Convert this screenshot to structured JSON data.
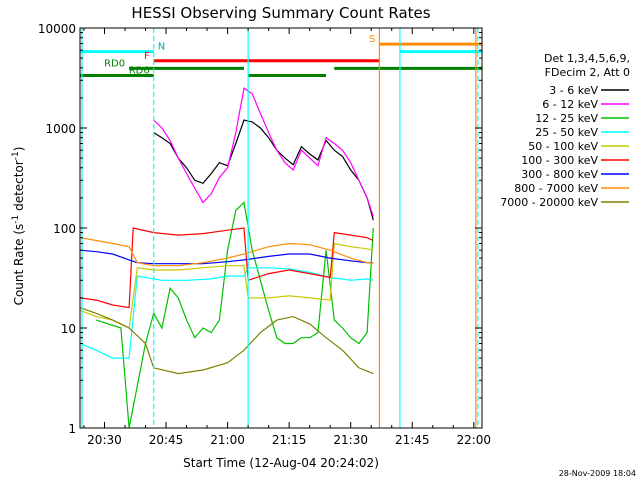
{
  "chart_data": {
    "type": "line",
    "title": "HESSI Observing Summary Count Rates",
    "xlabel": "Start Time (12-Aug-04 20:24:02)",
    "ylabel": "Count Rate (s⁻¹ detector⁻¹)",
    "ylabel_main": "Count Rate (s",
    "ylabel_sup1": "-1",
    "ylabel_mid": " detector",
    "ylabel_sup2": "-1",
    "ylabel_end": ")",
    "y_scale": "log",
    "ylim": [
      1,
      10000
    ],
    "xlim": [
      "20:24:02",
      "22:02:00"
    ],
    "x_ticks": [
      "20:30",
      "20:45",
      "21:00",
      "21:15",
      "21:30",
      "21:45",
      "22:00"
    ],
    "y_ticks": [
      "1",
      "10",
      "100",
      "1000",
      "10000"
    ],
    "legend_header": [
      "Det 1,3,4,5,6,9,",
      "FDecim 2, Att 0"
    ],
    "legend_position": "right",
    "footer_date": "28-Nov-2009 18:04",
    "series": [
      {
        "name": "3 - 6 keV",
        "color": "#000000",
        "x": [
          "20:42:00",
          "20:44:00",
          "20:46:00",
          "20:48:00",
          "20:50:00",
          "20:52:00",
          "20:54:00",
          "20:56:00",
          "20:58:00",
          "21:00:00",
          "21:02:00",
          "21:04:00",
          "21:06:00",
          "21:08:00",
          "21:10:00",
          "21:12:00",
          "21:14:00",
          "21:16:00",
          "21:18:00",
          "21:20:00",
          "21:22:00",
          "21:24:00",
          "21:26:00",
          "21:28:00",
          "21:30:00",
          "21:32:00",
          "21:34:00",
          "21:35:30"
        ],
        "values": [
          900,
          800,
          700,
          500,
          400,
          300,
          280,
          350,
          450,
          420,
          700,
          1200,
          1150,
          1000,
          800,
          600,
          500,
          430,
          650,
          550,
          480,
          750,
          600,
          520,
          380,
          300,
          200,
          120
        ]
      },
      {
        "name": "6 - 12 keV",
        "color": "#ff00ff",
        "x": [
          "20:42:00",
          "20:44:00",
          "20:46:00",
          "20:48:00",
          "20:50:00",
          "20:52:00",
          "20:54:00",
          "20:56:00",
          "20:58:00",
          "21:00:00",
          "21:02:00",
          "21:04:00",
          "21:06:00",
          "21:08:00",
          "21:10:00",
          "21:12:00",
          "21:14:00",
          "21:16:00",
          "21:18:00",
          "21:20:00",
          "21:22:00",
          "21:24:00",
          "21:26:00",
          "21:28:00",
          "21:30:00",
          "21:32:00",
          "21:34:00",
          "21:35:30"
        ],
        "values": [
          1200,
          1000,
          750,
          500,
          350,
          250,
          180,
          220,
          320,
          400,
          900,
          2500,
          2200,
          1400,
          900,
          600,
          450,
          380,
          600,
          500,
          420,
          800,
          700,
          600,
          450,
          300,
          200,
          130
        ]
      },
      {
        "name": "12 - 25 keV",
        "color": "#00c000",
        "x": [
          "20:28:00",
          "20:34:00",
          "20:36:00",
          "20:40:00",
          "20:42:00",
          "20:44:00",
          "20:46:00",
          "20:48:00",
          "20:50:00",
          "20:52:00",
          "20:54:00",
          "20:56:00",
          "20:58:00",
          "21:00:00",
          "21:02:00",
          "21:04:00",
          "21:06:00",
          "21:08:00",
          "21:10:00",
          "21:12:00",
          "21:14:00",
          "21:16:00",
          "21:18:00",
          "21:20:00",
          "21:22:00",
          "21:24:00",
          "21:26:00",
          "21:28:00",
          "21:30:00",
          "21:32:00",
          "21:34:00",
          "21:35:30"
        ],
        "values": [
          12,
          10,
          1,
          7,
          14,
          10,
          25,
          20,
          12,
          8,
          10,
          9,
          12,
          60,
          150,
          180,
          60,
          30,
          15,
          8,
          7,
          7,
          8,
          8,
          9,
          60,
          12,
          10,
          8,
          7,
          9,
          100
        ]
      },
      {
        "name": "25 - 50 keV",
        "color": "#00ffff",
        "x": [
          "20:24:02",
          "20:28:00",
          "20:32:00",
          "20:36:00",
          "20:38:00",
          "20:40:00",
          "20:44:00",
          "20:50:00",
          "20:56:00",
          "21:00:00",
          "21:04:00",
          "21:05:00",
          "21:10:00",
          "21:15:00",
          "21:20:00",
          "21:25:00",
          "21:30:00",
          "21:34:00",
          "21:35:30"
        ],
        "values": [
          7,
          6,
          5,
          5,
          33,
          32,
          30,
          30,
          31,
          33,
          33,
          40,
          40,
          39,
          36,
          32,
          30,
          31,
          30
        ]
      },
      {
        "name": "50 - 100 keV",
        "color": "#c8c800",
        "x": [
          "20:24:02",
          "20:28:00",
          "20:32:00",
          "20:36:00",
          "20:38:00",
          "20:42:00",
          "20:48:00",
          "20:54:00",
          "21:00:00",
          "21:04:00",
          "21:05:00",
          "21:10:00",
          "21:15:00",
          "21:20:00",
          "21:25:00",
          "21:26:00",
          "21:30:00",
          "21:34:00",
          "21:35:30"
        ],
        "values": [
          15,
          13,
          12,
          10,
          40,
          38,
          38,
          40,
          42,
          42,
          20,
          20,
          21,
          20,
          19,
          70,
          65,
          62,
          60
        ]
      },
      {
        "name": "100 - 300 keV",
        "color": "#ff0000",
        "x": [
          "20:24:02",
          "20:28:00",
          "20:32:00",
          "20:36:00",
          "20:37:00",
          "20:42:00",
          "20:48:00",
          "20:54:00",
          "21:00:00",
          "21:04:00",
          "21:05:00",
          "21:10:00",
          "21:15:00",
          "21:20:00",
          "21:25:00",
          "21:26:00",
          "21:30:00",
          "21:34:00",
          "21:35:30"
        ],
        "values": [
          20,
          19,
          17,
          16,
          100,
          90,
          85,
          88,
          95,
          100,
          30,
          35,
          38,
          35,
          32,
          90,
          85,
          80,
          75
        ]
      },
      {
        "name": "300 - 800 keV",
        "color": "#0000ff",
        "x": [
          "20:24:02",
          "20:28:00",
          "20:32:00",
          "20:36:00",
          "20:38:00",
          "20:42:00",
          "20:48:00",
          "20:54:00",
          "21:00:00",
          "21:04:00",
          "21:10:00",
          "21:15:00",
          "21:20:00",
          "21:25:00",
          "21:30:00",
          "21:34:00",
          "21:35:30"
        ],
        "values": [
          60,
          58,
          55,
          48,
          45,
          44,
          44,
          44,
          46,
          48,
          52,
          55,
          55,
          50,
          47,
          45,
          45
        ]
      },
      {
        "name": "800 - 7000 keV",
        "color": "#ff8c00",
        "x": [
          "20:24:02",
          "20:28:00",
          "20:32:00",
          "20:36:00",
          "20:38:00",
          "20:42:00",
          "20:48:00",
          "20:54:00",
          "21:00:00",
          "21:04:00",
          "21:10:00",
          "21:15:00",
          "21:20:00",
          "21:25:00",
          "21:30:00",
          "21:34:00",
          "21:35:30"
        ],
        "values": [
          80,
          75,
          70,
          65,
          45,
          42,
          42,
          45,
          50,
          55,
          65,
          70,
          68,
          60,
          50,
          45,
          45
        ]
      },
      {
        "name": "7000 - 20000 keV",
        "color": "#808000",
        "x": [
          "20:24:02",
          "20:28:00",
          "20:32:00",
          "20:36:00",
          "20:40:00",
          "20:42:00",
          "20:48:00",
          "20:54:00",
          "21:00:00",
          "21:04:00",
          "21:08:00",
          "21:12:00",
          "21:16:00",
          "21:20:00",
          "21:24:00",
          "21:28:00",
          "21:32:00",
          "21:35:30"
        ],
        "values": [
          16,
          14,
          12,
          10,
          7,
          4,
          3.5,
          3.8,
          4.5,
          6,
          9,
          12,
          13,
          11,
          8,
          6,
          4,
          3.5
        ]
      }
    ],
    "vertical_markers": [
      {
        "time": "20:24:30",
        "color": "#00ffff",
        "style": "solid"
      },
      {
        "time": "20:42:00",
        "color": "#00ffff",
        "style": "dashed"
      },
      {
        "time": "21:05:00",
        "color": "#00ffff",
        "style": "solid"
      },
      {
        "time": "21:37:00",
        "color": "#ff8c00",
        "style": "solid"
      },
      {
        "time": "21:42:00",
        "color": "#00ffff",
        "style": "solid"
      },
      {
        "time": "22:00:30",
        "color": "#ff8c00",
        "style": "solid"
      },
      {
        "time": "22:01:00",
        "color": "#00ffff",
        "style": "dashed"
      }
    ],
    "flag_bars": [
      {
        "label": "N",
        "color": "#00ffff",
        "segments": [
          {
            "start": "20:24:02",
            "end": "20:42:00",
            "value": 5800
          },
          {
            "start": "21:42:00",
            "end": "22:02:00",
            "value": 5800
          }
        ]
      },
      {
        "label": "S",
        "color": "#ff8c00",
        "segments": [
          {
            "start": "21:37:00",
            "end": "22:02:00",
            "value": 6900
          }
        ]
      },
      {
        "label": "F",
        "color": "#ff0000",
        "segments": [
          {
            "start": "20:42:00",
            "end": "21:37:00",
            "value": 4700
          }
        ]
      },
      {
        "label": "RD0",
        "color": "#008000",
        "segments": [
          {
            "start": "20:36:00",
            "end": "21:04:00",
            "value": 3950
          },
          {
            "start": "21:26:00",
            "end": "22:02:00",
            "value": 3950
          }
        ]
      },
      {
        "label": "RD6",
        "color": "#008000",
        "segments": [
          {
            "start": "20:24:02",
            "end": "20:42:00",
            "value": 3350
          },
          {
            "start": "21:05:00",
            "end": "21:24:00",
            "value": 3350
          }
        ]
      }
    ]
  }
}
